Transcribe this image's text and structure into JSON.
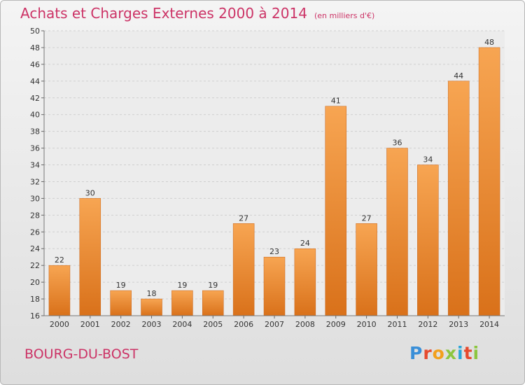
{
  "title": "Achats et Charges Externes 2000 à 2014",
  "subtitle": "(en milliers d'€)",
  "commune": "BOURG-DU-BOST",
  "logo": {
    "letters": [
      "P",
      "r",
      "o",
      "x",
      "i",
      "t",
      "i"
    ],
    "colors": [
      "#3a8fd8",
      "#e64a2e",
      "#f2a01c",
      "#8cc63f",
      "#2aa7d8",
      "#e64a2e",
      "#8cc63f"
    ]
  },
  "chart_data": {
    "type": "bar",
    "title": "Achats et Charges Externes 2000 à 2014",
    "subtitle": "(en milliers d'€)",
    "categories": [
      "2000",
      "2001",
      "2002",
      "2003",
      "2004",
      "2005",
      "2006",
      "2007",
      "2008",
      "2009",
      "2010",
      "2011",
      "2012",
      "2013",
      "2014"
    ],
    "values": [
      22,
      30,
      19,
      18,
      19,
      19,
      27,
      23,
      24,
      41,
      27,
      36,
      34,
      44,
      48
    ],
    "ylim": [
      16,
      50
    ],
    "yticks": [
      16,
      18,
      20,
      22,
      24,
      26,
      28,
      30,
      32,
      34,
      36,
      38,
      40,
      42,
      44,
      46,
      48,
      50
    ],
    "grid": true,
    "bar_color": "#f0963a"
  }
}
